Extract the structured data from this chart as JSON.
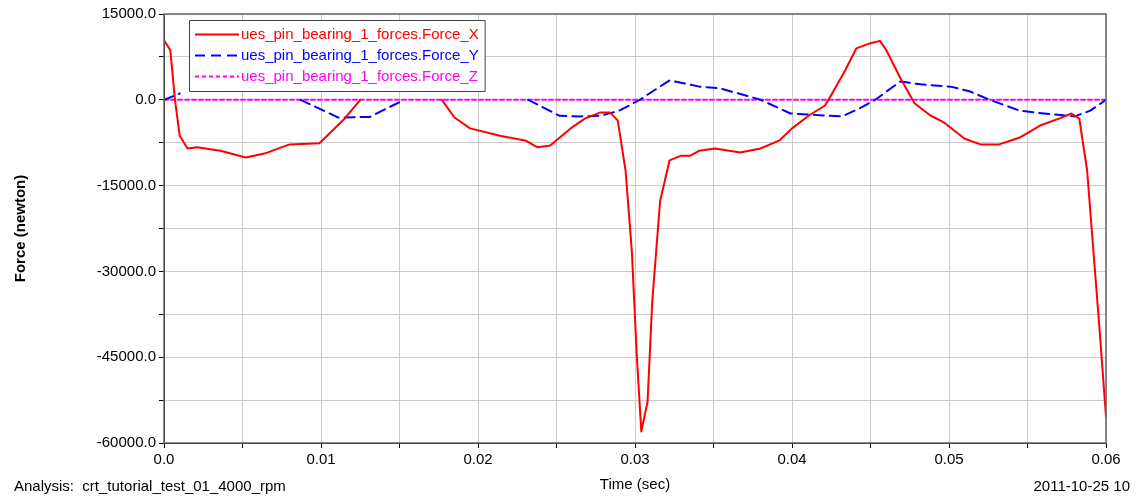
{
  "chart_data": {
    "type": "line",
    "xlabel": "Time (sec)",
    "ylabel": "Force (newton)",
    "xlim": [
      0,
      0.06
    ],
    "ylim": [
      -60000,
      15000
    ],
    "xticks": [
      {
        "value": 0,
        "label": "0.0"
      },
      {
        "value": 0.005,
        "label": null
      },
      0.01,
      {
        "value": 0.015,
        "label": null
      },
      0.02,
      {
        "value": 0.025,
        "label": null
      },
      0.03,
      {
        "value": 0.035,
        "label": null
      },
      0.04,
      {
        "value": 0.045,
        "label": null
      },
      0.05,
      {
        "value": 0.055,
        "label": null
      },
      0.06
    ],
    "yticks": [
      {
        "value": -60000,
        "label": "-60000.0"
      },
      {
        "value": -52500,
        "label": null
      },
      {
        "value": -45000,
        "label": "-45000.0"
      },
      {
        "value": -37500,
        "label": null
      },
      {
        "value": -30000,
        "label": "-30000.0"
      },
      {
        "value": -22500,
        "label": null
      },
      {
        "value": -15000,
        "label": "-15000.0"
      },
      {
        "value": -7500,
        "label": null
      },
      {
        "value": 0,
        "label": "0.0"
      },
      {
        "value": 7500,
        "label": null
      },
      {
        "value": 15000,
        "label": "15000.0"
      }
    ],
    "grid": true,
    "legend": "top left",
    "marker": "none",
    "annotations": [
      "Analysis:  crt_tutorial_test_01_4000_rpm",
      "2011-10-25 10"
    ],
    "series": [
      {
        "name": "ues_pin_bearing_1_forces.Force_X",
        "color": "#ff0000",
        "line_style": "solid",
        "x": [
          0,
          0.0004,
          0.0007,
          0.001,
          0.0015,
          0.0021,
          0.0036,
          0.0052,
          0.0064,
          0.008,
          0.0099,
          0.0115,
          0.0125,
          0.015,
          0.0177,
          0.0185,
          0.0195,
          0.0214,
          0.023,
          0.0238,
          0.0246,
          0.0259,
          0.0268,
          0.0278,
          0.0284,
          0.0289,
          0.0294,
          0.0298,
          0.0301,
          0.0304,
          0.0308,
          0.0311,
          0.0316,
          0.0322,
          0.0329,
          0.0335,
          0.0341,
          0.0351,
          0.0367,
          0.038,
          0.0392,
          0.04,
          0.0411,
          0.0421,
          0.0426,
          0.0434,
          0.0441,
          0.045,
          0.0456,
          0.046,
          0.0469,
          0.0478,
          0.0488,
          0.0497,
          0.051,
          0.052,
          0.0532,
          0.0545,
          0.0558,
          0.057,
          0.0578,
          0.0583,
          0.0588,
          0.0592,
          0.0596,
          0.06
        ],
        "values": [
          10400,
          8700,
          0,
          -6300,
          -8500,
          -8300,
          -8900,
          -10100,
          -9400,
          -7800,
          -7600,
          -3300,
          0,
          null,
          0,
          -3100,
          -5000,
          -6300,
          -7100,
          -8300,
          -8000,
          -5000,
          -3300,
          -2200,
          -2200,
          -3600,
          -12400,
          -26500,
          -44000,
          -58000,
          -52800,
          -35200,
          -17700,
          -10600,
          -9800,
          -9800,
          -8900,
          -8500,
          -9200,
          -8500,
          -7100,
          -5000,
          -2700,
          -1000,
          1300,
          5200,
          9000,
          9900,
          10300,
          8700,
          3800,
          -600,
          -2700,
          -4000,
          -6800,
          -7800,
          -7800,
          -6600,
          -4500,
          -3300,
          -2400,
          -3300,
          -12400,
          -26500,
          -40500,
          -55400
        ]
      },
      {
        "name": "ues_pin_bearing_1_forces.Force_Y",
        "color": "#0000ff",
        "line_style": "dashed",
        "x": [
          0,
          0.001,
          0.005,
          0.0087,
          0.0111,
          0.0131,
          0.0153,
          0.02,
          0.0232,
          0.0252,
          0.0265,
          0.0278,
          0.029,
          0.0303,
          0.0322,
          0.0341,
          0.0354,
          0.037,
          0.038,
          0.0399,
          0.0418,
          0.0432,
          0.0443,
          0.0453,
          0.0469,
          0.0482,
          0.0501,
          0.0513,
          0.0526,
          0.0545,
          0.0564,
          0.058,
          0.059,
          0.06
        ],
        "values": [
          0,
          1100,
          null,
          0,
          -3100,
          -3000,
          0,
          null,
          0,
          -2800,
          -2900,
          -2800,
          -1900,
          0,
          3400,
          2300,
          2000,
          800,
          0,
          -2400,
          -2700,
          -2900,
          -1500,
          0,
          3200,
          2700,
          2300,
          1500,
          0,
          -1900,
          -2500,
          -2900,
          -1900,
          0
        ]
      },
      {
        "name": "ues_pin_bearing_1_forces.Force_Z",
        "color": "#ff00ff",
        "line_style": "dotted",
        "x": [
          0,
          0.06
        ],
        "values": [
          0,
          0
        ]
      }
    ]
  }
}
